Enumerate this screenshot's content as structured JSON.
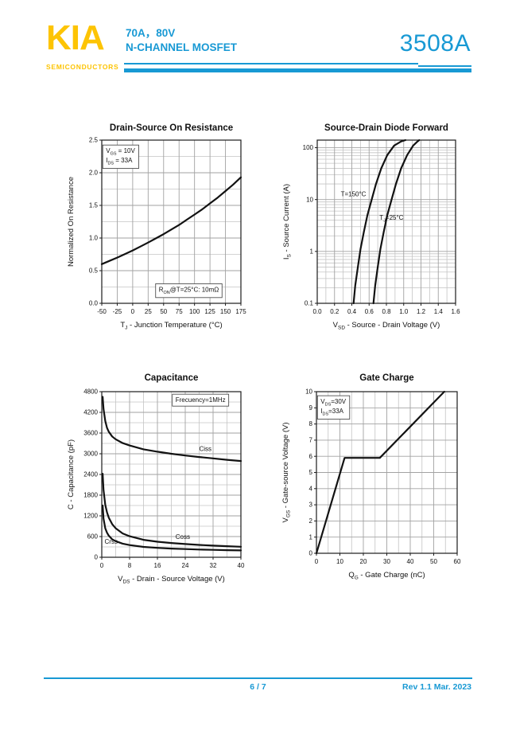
{
  "header": {
    "logo_text": "KIA",
    "logo_sub": "SEMICONDUCTORS",
    "spec_line1": "70A，80V",
    "spec_line2": "N-CHANNEL MOSFET",
    "part_number": "3508A",
    "accent_color": "#1899d4",
    "logo_color": "#fdc404"
  },
  "footer": {
    "page_indicator": "6 / 7",
    "revision": "Rev 1.1 Mar. 2023"
  },
  "chart_data": [
    {
      "type": "line",
      "title": "Drain-Source On Resistance",
      "xlabel": "T_{J} - Junction Temperature (°C)",
      "ylabel": "Normalized On Resistance",
      "x": {
        "min": -50,
        "max": 175,
        "ticks": [
          -50,
          -25,
          0,
          25,
          50,
          75,
          100,
          125,
          150,
          175
        ],
        "tick_labels": [
          "-50",
          "-25",
          "0",
          "25",
          "50",
          "75",
          "100",
          "125",
          "150",
          "175"
        ],
        "minor": []
      },
      "y": {
        "scale": "linear",
        "min": 0,
        "max": 2.5,
        "ticks": [
          0,
          0.5,
          1,
          1.5,
          2,
          2.5
        ],
        "tick_labels": [
          "0.0",
          "0.5",
          "1.0",
          "1.5",
          "2.0",
          "2.5"
        ],
        "minor": [
          0.25,
          0.75,
          1.25,
          1.75,
          2.25
        ]
      },
      "series": [
        {
          "name": "normalized-rdson",
          "x": [
            -50,
            -37.5,
            -25,
            -12.5,
            0,
            12.5,
            25,
            37.5,
            50,
            62.5,
            75,
            87.5,
            100,
            112.5,
            125,
            137.5,
            150,
            162.5,
            175
          ],
          "y": [
            0.6,
            0.65,
            0.7,
            0.755,
            0.81,
            0.87,
            0.93,
            0.995,
            1.06,
            1.13,
            1.2,
            1.28,
            1.36,
            1.44,
            1.53,
            1.62,
            1.72,
            1.82,
            1.93
          ]
        }
      ],
      "annotations": [
        {
          "lines": [
            "V_{GS} = 10V",
            "I_{DS} = 33A"
          ],
          "fx": 0.03,
          "fy": 0.035,
          "box": true
        },
        {
          "lines": [
            "R_{ON}@T=25°C: 10mΩ"
          ],
          "fx": 0.41,
          "fy": 0.885,
          "box": true
        }
      ]
    },
    {
      "type": "line",
      "title": "Source-Drain Diode Forward",
      "xlabel": "V_{SD} - Source - Drain Voltage (V)",
      "ylabel": "I_{S} - Source Current (A)",
      "x": {
        "min": 0,
        "max": 1.6,
        "ticks": [
          0,
          0.2,
          0.4,
          0.6,
          0.8,
          1.0,
          1.2,
          1.4,
          1.6
        ],
        "tick_labels": [
          "0.0",
          "0.2",
          "0.4",
          "0.6",
          "0.8",
          "1.0",
          "1.2",
          "1.4",
          "1.6"
        ],
        "minor": [
          0.1,
          0.3,
          0.5,
          0.7,
          0.9,
          1.1,
          1.3,
          1.5
        ]
      },
      "y": {
        "scale": "log",
        "min": 0.1,
        "max": 140,
        "ticks": [
          0.1,
          1,
          10,
          100
        ],
        "tick_labels": [
          "0.1",
          "1",
          "10",
          "100"
        ],
        "minor": []
      },
      "series": [
        {
          "name": "diode-150C",
          "x": [
            0.42,
            0.44,
            0.47,
            0.5,
            0.54,
            0.58,
            0.63,
            0.68,
            0.74,
            0.81,
            0.89,
            0.97,
            1.02
          ],
          "y": [
            0.1,
            0.22,
            0.5,
            1.1,
            2.4,
            5,
            10,
            20,
            40,
            72,
            110,
            132,
            140
          ]
        },
        {
          "name": "diode-25C",
          "x": [
            0.65,
            0.67,
            0.7,
            0.73,
            0.77,
            0.81,
            0.86,
            0.91,
            0.97,
            1.04,
            1.11,
            1.16,
            1.18
          ],
          "y": [
            0.1,
            0.22,
            0.5,
            1.1,
            2.4,
            5,
            10,
            20,
            40,
            72,
            110,
            132,
            140
          ]
        }
      ],
      "annotations": [
        {
          "lines": [
            "T=150°C"
          ],
          "fx": 0.17,
          "fy": 0.3,
          "box": false
        },
        {
          "lines": [
            "T_{J}=25°C"
          ],
          "fx": 0.45,
          "fy": 0.445,
          "box": false
        }
      ]
    },
    {
      "type": "line",
      "title": "Capacitance",
      "xlabel": "V_{DS} - Drain - Source Voltage (V)",
      "ylabel": "C - Capacitance (pF)",
      "x": {
        "min": 0,
        "max": 40,
        "ticks": [
          0,
          8,
          16,
          24,
          32,
          40
        ],
        "tick_labels": [
          "0",
          "8",
          "16",
          "24",
          "32",
          "40"
        ],
        "minor": [
          4,
          12,
          20,
          28,
          36
        ]
      },
      "y": {
        "scale": "linear",
        "min": 0,
        "max": 4800,
        "ticks": [
          0,
          600,
          1200,
          1800,
          2400,
          3000,
          3600,
          4200,
          4800
        ],
        "tick_labels": [
          "0",
          "600",
          "1200",
          "1800",
          "2400",
          "3000",
          "3600",
          "4200",
          "4800"
        ],
        "minor": [
          300,
          900,
          1500,
          2100,
          2700,
          3300,
          3900,
          4500
        ]
      },
      "series": [
        {
          "name": "Ciss",
          "x": [
            0.25,
            0.5,
            1,
            1.5,
            2,
            3,
            4,
            6,
            8,
            12,
            16,
            20,
            24,
            28,
            32,
            36,
            40
          ],
          "y": [
            4650,
            4300,
            3950,
            3750,
            3640,
            3500,
            3420,
            3310,
            3240,
            3130,
            3060,
            3000,
            2950,
            2905,
            2865,
            2825,
            2790
          ]
        },
        {
          "name": "Coss",
          "x": [
            0.25,
            0.5,
            1,
            1.5,
            2,
            3,
            4,
            6,
            8,
            12,
            16,
            20,
            24,
            28,
            32,
            36,
            40
          ],
          "y": [
            2420,
            1950,
            1520,
            1300,
            1150,
            960,
            840,
            690,
            610,
            505,
            450,
            412,
            382,
            357,
            337,
            320,
            305
          ]
        },
        {
          "name": "Crss",
          "x": [
            0.25,
            0.5,
            1,
            1.5,
            2,
            3,
            4,
            6,
            8,
            12,
            16,
            20,
            24,
            28,
            32,
            36,
            40
          ],
          "y": [
            1500,
            1120,
            840,
            710,
            625,
            520,
            465,
            395,
            352,
            300,
            272,
            252,
            237,
            225,
            214,
            206,
            198
          ]
        }
      ],
      "annotations": [
        {
          "lines": [
            "Frecuency=1MHz"
          ],
          "fx": 0.53,
          "fy": 0.02,
          "box": true
        },
        {
          "lines": [
            "Ciss"
          ],
          "fx": 0.7,
          "fy": 0.315,
          "box": false
        },
        {
          "lines": [
            "Coss"
          ],
          "fx": 0.53,
          "fy": 0.845,
          "box": false
        },
        {
          "lines": [
            "Crss"
          ],
          "fx": 0.02,
          "fy": 0.875,
          "box": false
        }
      ]
    },
    {
      "type": "line",
      "title": "Gate Charge",
      "xlabel": "Q_{G} - Gate Charge (nC)",
      "ylabel": "V_{GS} - Gate-source Voltage (V)",
      "x": {
        "min": 0,
        "max": 60,
        "ticks": [
          0,
          10,
          20,
          30,
          40,
          50,
          60
        ],
        "tick_labels": [
          "0",
          "10",
          "20",
          "30",
          "40",
          "50",
          "60"
        ],
        "minor": [
          5,
          15,
          25,
          35,
          45,
          55
        ]
      },
      "y": {
        "scale": "linear",
        "min": 0,
        "max": 10,
        "ticks": [
          0,
          1,
          2,
          3,
          4,
          5,
          6,
          7,
          8,
          9,
          10
        ],
        "tick_labels": [
          "0",
          "1",
          "2",
          "3",
          "4",
          "5",
          "6",
          "7",
          "8",
          "9",
          "10"
        ],
        "minor": []
      },
      "series": [
        {
          "name": "gate-charge",
          "x": [
            0,
            12,
            27,
            54.5
          ],
          "y": [
            0,
            5.9,
            5.9,
            10
          ]
        }
      ],
      "annotations": [
        {
          "lines": [
            "V_{DS}=30V",
            "I_{DS}=33A"
          ],
          "fx": 0.03,
          "fy": 0.03,
          "box": true
        }
      ]
    }
  ]
}
